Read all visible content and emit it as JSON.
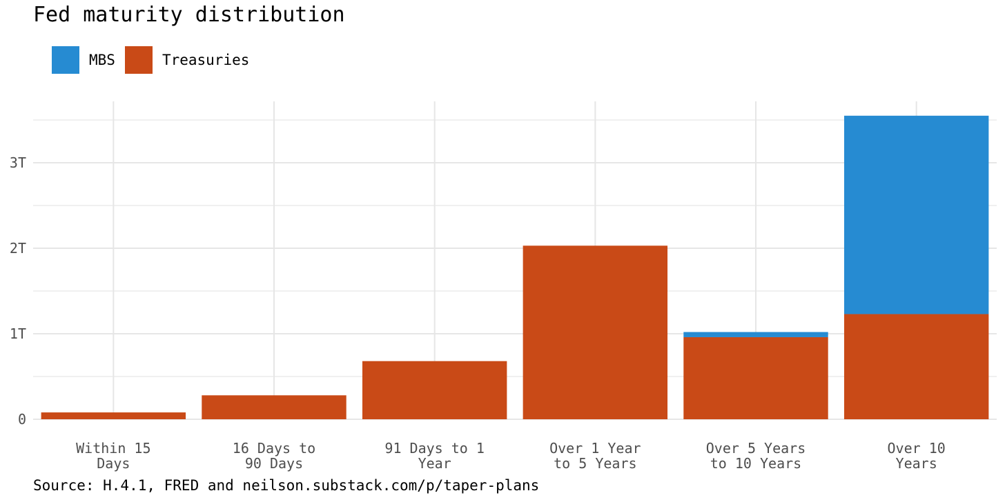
{
  "chart_data": {
    "type": "bar",
    "stacked": true,
    "title": "Fed maturity distribution",
    "xlabel": "",
    "ylabel": "",
    "categories": [
      "Within 15\nDays",
      "16 Days to\n90 Days",
      "91 Days to 1\nYear",
      "Over 1 Year\nto 5 Years",
      "Over 5 Years\nto 10 Years",
      "Over 10\nYears"
    ],
    "series": [
      {
        "name": "Treasuries",
        "color": "#C94A17",
        "values": [
          0.08,
          0.28,
          0.68,
          2.03,
          0.96,
          1.23
        ]
      },
      {
        "name": "MBS",
        "color": "#268BD2",
        "values": [
          0.0,
          0.0,
          0.0,
          0.0,
          0.06,
          2.32
        ]
      }
    ],
    "ylim": [
      0,
      3.55
    ],
    "yticks": [
      0,
      1,
      2,
      3
    ],
    "ytick_labels": [
      "0",
      "1T",
      "2T",
      "3T"
    ],
    "grid": true,
    "legend_position": "top-left"
  },
  "legend": [
    {
      "label": "MBS",
      "color": "#268BD2"
    },
    {
      "label": "Treasuries",
      "color": "#C94A17"
    }
  ],
  "source": "Source: H.4.1, FRED and neilson.substack.com/p/taper-plans"
}
